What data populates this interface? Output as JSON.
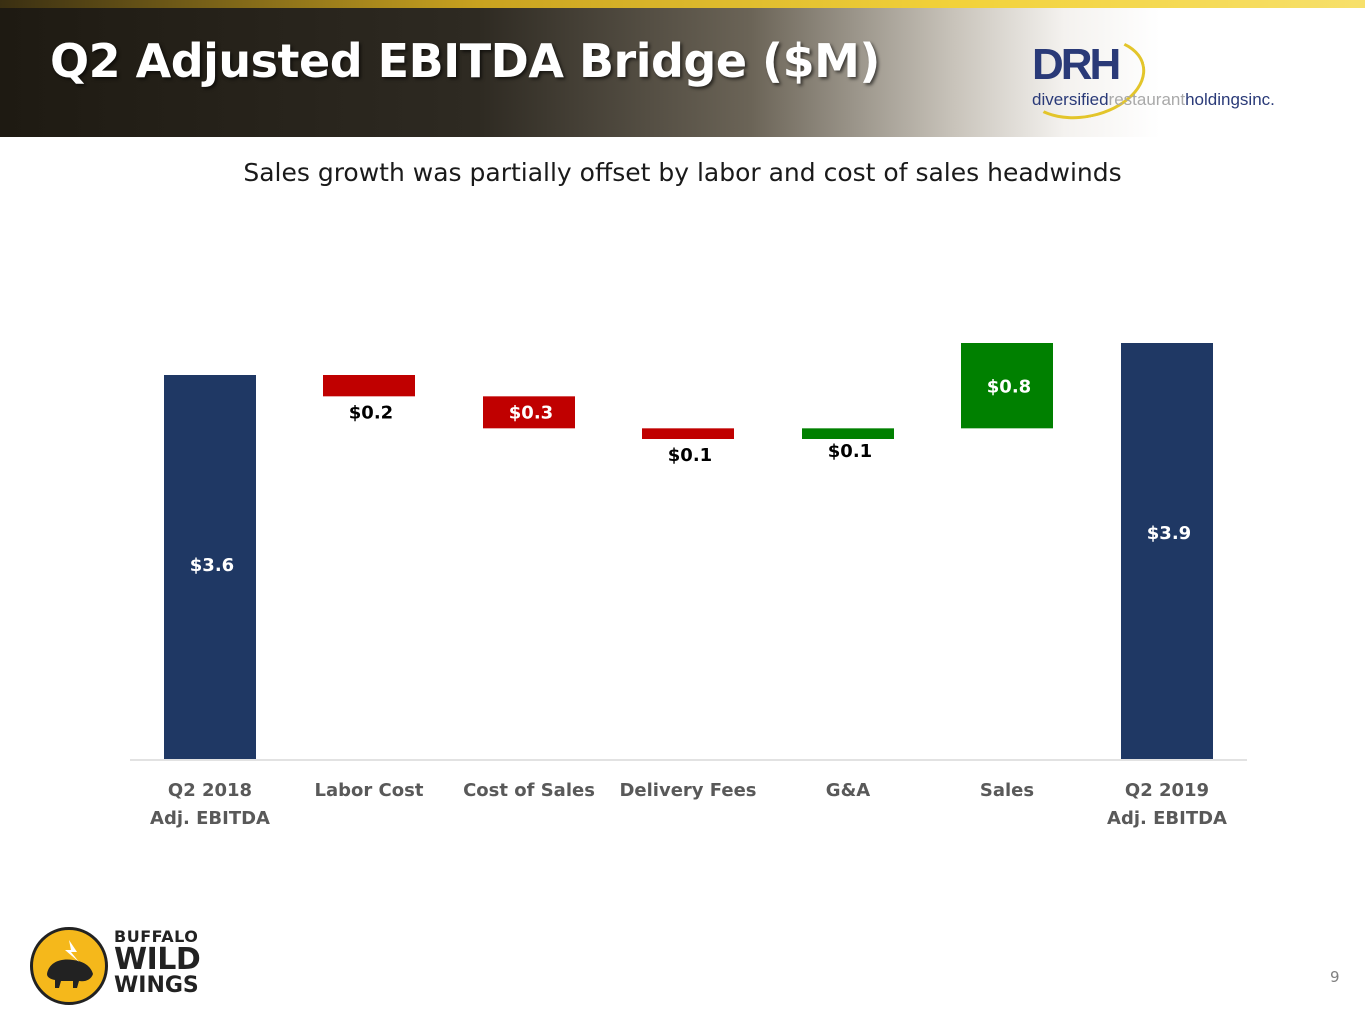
{
  "header": {
    "title": "Q2 Adjusted EBITDA Bridge ($M)",
    "logo_mark": "DRH",
    "logo_word_1": "diversified",
    "logo_word_2": "restaurant",
    "logo_word_3": "holdingsinc."
  },
  "subtitle": "Sales growth was partially offset by labor and cost of sales headwinds",
  "colors": {
    "total": "#1f3864",
    "decrease": "#c00000",
    "increase": "#008000"
  },
  "chart_data": {
    "type": "waterfall",
    "title": "Q2 Adjusted EBITDA Bridge ($M)",
    "categories": [
      [
        "Q2 2018",
        "Adj. EBITDA"
      ],
      [
        "Labor Cost"
      ],
      [
        "Cost of Sales"
      ],
      [
        "Delivery Fees"
      ],
      [
        "G&A"
      ],
      [
        "Sales"
      ],
      [
        "Q2 2019",
        "Adj. EBITDA"
      ]
    ],
    "steps": [
      {
        "kind": "total",
        "value": 3.6,
        "label": "$3.6"
      },
      {
        "kind": "decrease",
        "value": 0.2,
        "label": "$0.2"
      },
      {
        "kind": "decrease",
        "value": 0.3,
        "label": "$0.3"
      },
      {
        "kind": "decrease",
        "value": 0.1,
        "label": "$0.1"
      },
      {
        "kind": "increase",
        "value": 0.1,
        "label": "$0.1"
      },
      {
        "kind": "increase",
        "value": 0.8,
        "label": "$0.8"
      },
      {
        "kind": "total",
        "value": 3.9,
        "label": "$3.9"
      }
    ],
    "ylim": [
      0,
      3.9
    ],
    "grid": false,
    "legend": "none"
  },
  "footer": {
    "brand_line_1": "BUFFALO",
    "brand_line_2": "WILD",
    "brand_line_3": "WINGS",
    "page_number": "9"
  }
}
